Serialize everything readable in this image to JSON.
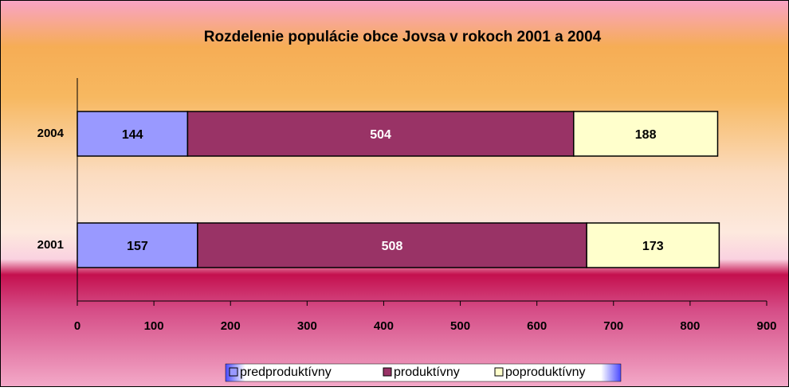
{
  "chart_data": {
    "type": "stacked_bar_horizontal",
    "title": "Rozdelenie populácie obce Jovsa v rokoch  2001 a 2004",
    "categories": [
      "2001",
      "2004"
    ],
    "series": [
      {
        "name": "predproduktívny",
        "color": "#9999ff",
        "label_color": "#000000",
        "values": [
          157,
          144
        ]
      },
      {
        "name": "produktívny",
        "color": "#993366",
        "label_color": "#ffffff",
        "values": [
          508,
          504
        ]
      },
      {
        "name": "poproduktívny",
        "color": "#ffffcc",
        "label_color": "#000000",
        "values": [
          173,
          188
        ]
      }
    ],
    "xlim": [
      0,
      900
    ],
    "xticks": [
      0,
      100,
      200,
      300,
      400,
      500,
      600,
      700,
      800,
      900
    ],
    "legend": "bottom"
  }
}
